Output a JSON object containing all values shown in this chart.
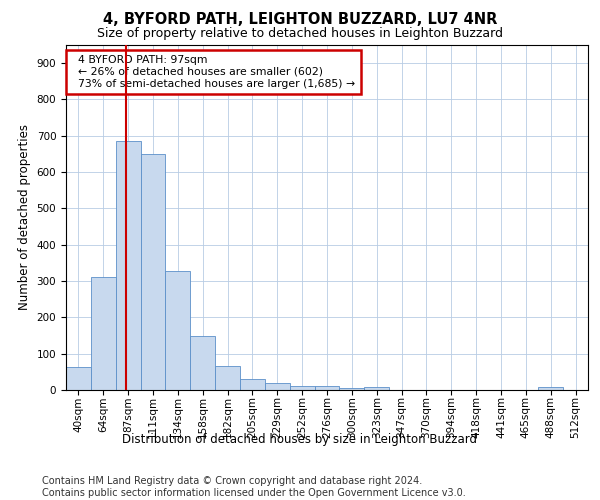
{
  "title": "4, BYFORD PATH, LEIGHTON BUZZARD, LU7 4NR",
  "subtitle": "Size of property relative to detached houses in Leighton Buzzard",
  "xlabel": "Distribution of detached houses by size in Leighton Buzzard",
  "ylabel": "Number of detached properties",
  "footnote": "Contains HM Land Registry data © Crown copyright and database right 2024.\nContains public sector information licensed under the Open Government Licence v3.0.",
  "bar_labels": [
    "40sqm",
    "64sqm",
    "87sqm",
    "111sqm",
    "134sqm",
    "158sqm",
    "182sqm",
    "205sqm",
    "229sqm",
    "252sqm",
    "276sqm",
    "300sqm",
    "323sqm",
    "347sqm",
    "370sqm",
    "394sqm",
    "418sqm",
    "441sqm",
    "465sqm",
    "488sqm",
    "512sqm"
  ],
  "bar_values": [
    62,
    310,
    685,
    650,
    328,
    150,
    65,
    30,
    18,
    10,
    10,
    5,
    8,
    0,
    0,
    0,
    0,
    0,
    0,
    8,
    0
  ],
  "bar_color": "#c8d9ee",
  "bar_edgecolor": "#5b8fc9",
  "annotation_text": "  4 BYFORD PATH: 97sqm\n  ← 26% of detached houses are smaller (602)\n  73% of semi-detached houses are larger (1,685) →",
  "annotation_box_color": "#ffffff",
  "annotation_box_edgecolor": "#cc0000",
  "vline_color": "#cc0000",
  "ylim": [
    0,
    950
  ],
  "yticks": [
    0,
    100,
    200,
    300,
    400,
    500,
    600,
    700,
    800,
    900
  ],
  "title_fontsize": 10.5,
  "subtitle_fontsize": 9,
  "axis_fontsize": 8.5,
  "tick_fontsize": 7.5,
  "footnote_fontsize": 7,
  "background_color": "#ffffff",
  "grid_color": "#b8cce4"
}
